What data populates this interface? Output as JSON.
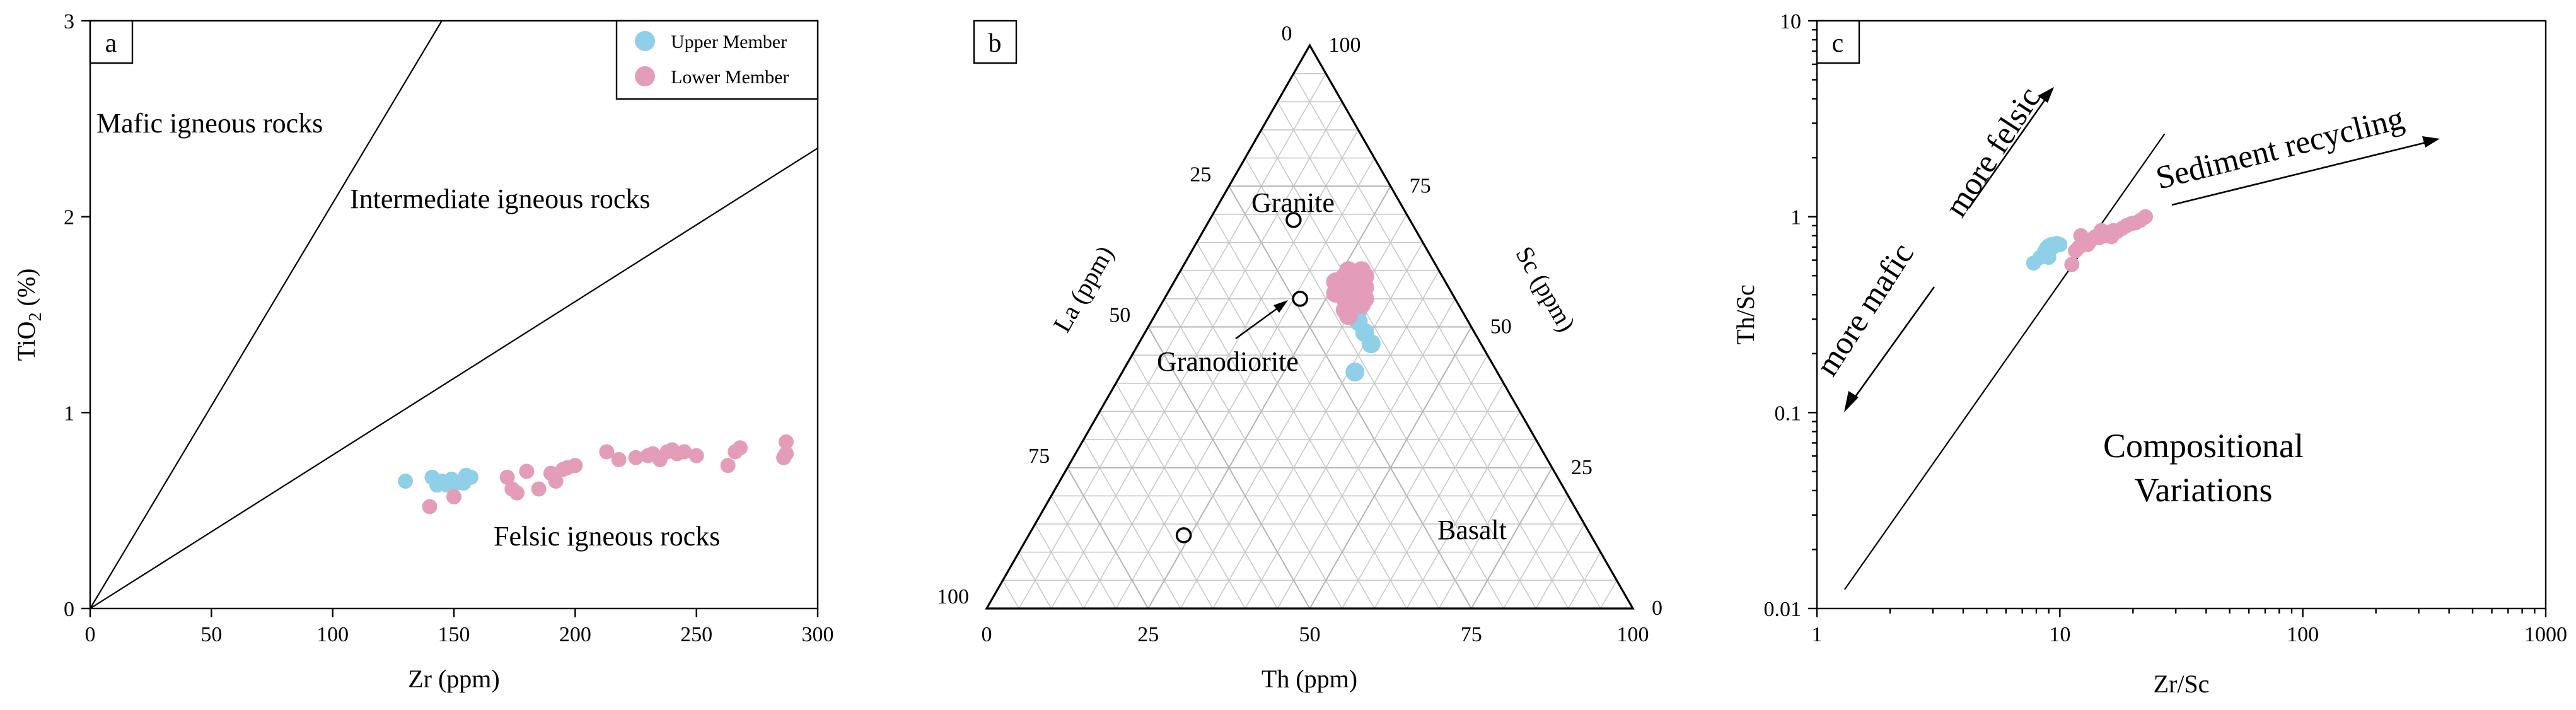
{
  "colors": {
    "upper": "#8fcfe8",
    "lower": "#e39db9"
  },
  "legend": {
    "upper": "Upper Member",
    "lower": "Lower Member"
  },
  "chart_data": [
    {
      "panel": "a",
      "type": "scatter",
      "xlabel": "Zr (ppm)",
      "ylabel_main": "TiO",
      "ylabel_sub": "2",
      "ylabel_tail": " (%)",
      "xlim": [
        0,
        300
      ],
      "ylim": [
        0,
        3
      ],
      "xticks": [
        0,
        50,
        100,
        150,
        200,
        250,
        300
      ],
      "yticks": [
        0,
        1,
        2,
        3
      ],
      "boundary_lines": [
        [
          [
            0,
            0
          ],
          [
            145,
            3
          ]
        ],
        [
          [
            0,
            0
          ],
          [
            300,
            2.35
          ]
        ]
      ],
      "field_labels": [
        "Mafic igneous rocks",
        "Intermediate igneous rocks",
        "Felsic igneous rocks"
      ],
      "series": [
        {
          "name": "Upper Member",
          "points": [
            [
              130,
              0.65
            ],
            [
              141,
              0.67
            ],
            [
              143,
              0.63
            ],
            [
              145,
              0.65
            ],
            [
              147,
              0.63
            ],
            [
              149,
              0.66
            ],
            [
              151,
              0.64
            ],
            [
              153,
              0.65
            ],
            [
              155,
              0.68
            ],
            [
              157,
              0.67
            ],
            [
              154,
              0.64
            ]
          ]
        },
        {
          "name": "Lower Member",
          "points": [
            [
              140,
              0.52
            ],
            [
              150,
              0.57
            ],
            [
              172,
              0.67
            ],
            [
              174,
              0.61
            ],
            [
              176,
              0.59
            ],
            [
              180,
              0.7
            ],
            [
              185,
              0.61
            ],
            [
              190,
              0.69
            ],
            [
              192,
              0.65
            ],
            [
              195,
              0.71
            ],
            [
              197,
              0.72
            ],
            [
              200,
              0.73
            ],
            [
              213,
              0.8
            ],
            [
              218,
              0.76
            ],
            [
              225,
              0.77
            ],
            [
              230,
              0.78
            ],
            [
              232,
              0.79
            ],
            [
              235,
              0.76
            ],
            [
              238,
              0.8
            ],
            [
              240,
              0.81
            ],
            [
              242,
              0.79
            ],
            [
              245,
              0.8
            ],
            [
              250,
              0.78
            ],
            [
              263,
              0.73
            ],
            [
              266,
              0.8
            ],
            [
              268,
              0.82
            ],
            [
              286,
              0.77
            ],
            [
              287,
              0.85
            ],
            [
              287,
              0.79
            ]
          ]
        }
      ]
    },
    {
      "panel": "b",
      "type": "scatter",
      "subtype": "ternary",
      "bottom_axis_label": "Th (ppm)",
      "left_axis_label": "La (ppm)",
      "right_axis_label": "Sc (ppm)",
      "ticks": [
        0,
        25,
        50,
        75,
        100
      ],
      "reference_points": [
        {
          "label": "Granite",
          "la": 69,
          "th": 13,
          "sc": 18
        },
        {
          "label": "Granodiorite",
          "la": 55,
          "th": 21,
          "sc": 24
        },
        {
          "label": "Basalt",
          "la": 13,
          "th": 24,
          "sc": 63
        }
      ],
      "series": [
        {
          "name": "Upper Member",
          "points": [
            [
              59,
              27,
              14
            ],
            [
              57,
              28,
              15
            ],
            [
              55,
              30,
              15
            ],
            [
              53,
              31,
              16
            ],
            [
              51,
              32,
              17
            ],
            [
              49,
              34,
              17
            ],
            [
              47,
              36,
              17
            ],
            [
              42,
              36,
              22
            ]
          ]
        },
        {
          "name": "Lower Member",
          "points": [
            [
              60,
              26,
              14
            ],
            [
              59,
              27,
              14
            ],
            [
              59,
              26,
              15
            ],
            [
              58,
              27,
              15
            ],
            [
              58,
              26,
              16
            ],
            [
              57,
              28,
              15
            ],
            [
              57,
              27,
              16
            ],
            [
              56,
              28,
              16
            ],
            [
              56,
              27,
              17
            ],
            [
              55,
              28,
              17
            ],
            [
              55,
              29,
              16
            ],
            [
              54,
              29,
              17
            ],
            [
              54,
              30,
              16
            ],
            [
              53,
              29,
              18
            ],
            [
              60,
              28,
              12
            ],
            [
              59,
              29,
              12
            ],
            [
              57,
              30,
              13
            ],
            [
              55,
              31,
              14
            ],
            [
              58,
              25,
              17
            ],
            [
              56,
              26,
              18
            ],
            [
              54,
              31,
              15
            ],
            [
              52,
              30,
              18
            ]
          ]
        }
      ]
    },
    {
      "panel": "c",
      "type": "scatter",
      "xscale": "log",
      "yscale": "log",
      "xlabel": "Zr/Sc",
      "ylabel": "Th/Sc",
      "xlim": [
        1,
        1000
      ],
      "ylim": [
        0.01,
        10
      ],
      "xticks": [
        1,
        10,
        100,
        1000
      ],
      "yticks": [
        0.01,
        0.1,
        1,
        10
      ],
      "trend_line": [
        [
          1.3,
          0.0125
        ],
        [
          27,
          2.65
        ]
      ],
      "annotations": {
        "more_felsic": "more felsic",
        "more_mafic": "more mafic",
        "sediment_recycling": "Sediment recycling",
        "compositional_line1": "Compositional",
        "compositional_line2": "Variations"
      },
      "series": [
        {
          "name": "Upper Member",
          "points": [
            [
              7.8,
              0.58
            ],
            [
              8.3,
              0.62
            ],
            [
              8.6,
              0.65
            ],
            [
              8.8,
              0.69
            ],
            [
              9.0,
              0.71
            ],
            [
              9.2,
              0.72
            ],
            [
              9.4,
              0.7
            ],
            [
              9.7,
              0.73
            ],
            [
              10.0,
              0.72
            ],
            [
              9.0,
              0.62
            ],
            [
              8.7,
              0.67
            ]
          ]
        },
        {
          "name": "Lower Member",
          "points": [
            [
              11.2,
              0.57
            ],
            [
              11.6,
              0.67
            ],
            [
              12.0,
              0.7
            ],
            [
              12.4,
              0.73
            ],
            [
              12.8,
              0.75
            ],
            [
              13.2,
              0.74
            ],
            [
              13.6,
              0.77
            ],
            [
              14.0,
              0.79
            ],
            [
              14.5,
              0.78
            ],
            [
              15.0,
              0.81
            ],
            [
              15.5,
              0.8
            ],
            [
              16.0,
              0.83
            ],
            [
              16.6,
              0.85
            ],
            [
              17.2,
              0.84
            ],
            [
              18.0,
              0.87
            ],
            [
              18.8,
              0.9
            ],
            [
              19.6,
              0.92
            ],
            [
              20.5,
              0.93
            ],
            [
              21.5,
              0.96
            ],
            [
              22.5,
              1.0
            ],
            [
              12.2,
              0.8
            ],
            [
              13.0,
              0.72
            ],
            [
              14.8,
              0.85
            ],
            [
              16.3,
              0.79
            ]
          ]
        }
      ]
    }
  ]
}
